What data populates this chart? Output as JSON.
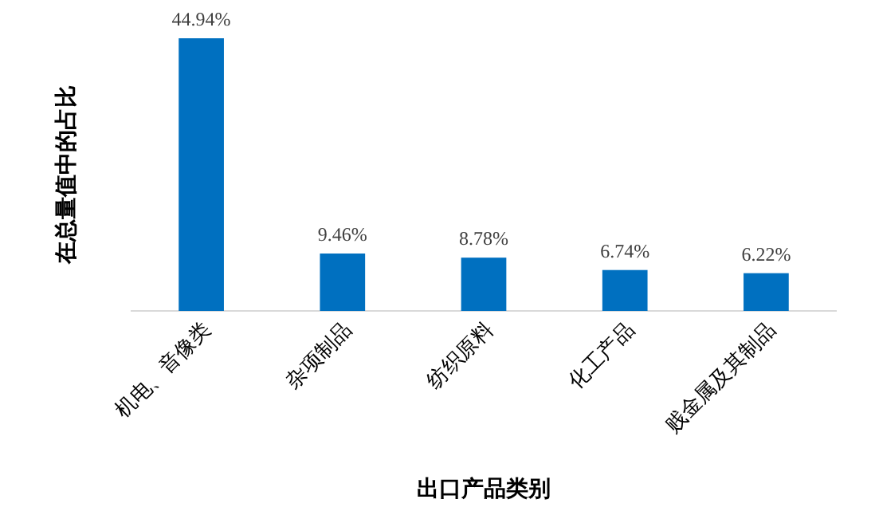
{
  "chart_data": {
    "type": "bar",
    "xlabel": "出口产品类别",
    "ylabel": "在总量值中的占比",
    "categories": [
      "机电、音像类",
      "杂项制品",
      "纺织原料",
      "化工产品",
      "贱金属及其制品"
    ],
    "values": [
      44.94,
      9.46,
      8.78,
      6.74,
      6.22
    ],
    "value_labels": [
      "44.94%",
      "9.46%",
      "8.78%",
      "6.74%",
      "6.22%"
    ],
    "color": "#0070c0"
  }
}
